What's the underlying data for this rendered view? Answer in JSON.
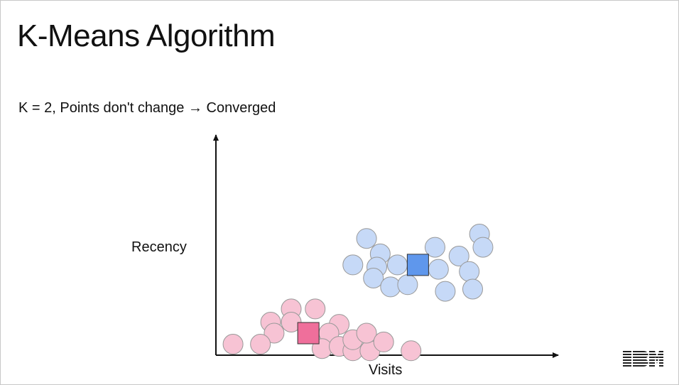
{
  "slide": {
    "title": "K-Means Algorithm",
    "subtitle": "K = 2, Points don't change → Converged"
  },
  "axes": {
    "x_label": "Visits",
    "y_label": "Recency"
  },
  "logo": {
    "text": "IBM"
  },
  "colors": {
    "cluster_pink_point": "#f7c3d4",
    "cluster_pink_centroid": "#ef6f9b",
    "cluster_blue_point": "#c6d9f7",
    "cluster_blue_centroid": "#5f97ec",
    "stroke": "#999999",
    "axis": "#111111"
  },
  "chart_data": {
    "type": "scatter",
    "x_label": "Visits",
    "y_label": "Recency",
    "grid": false,
    "series": [
      {
        "cluster": "pink",
        "points": [
          [
            0.22,
            0.21
          ],
          [
            0.29,
            0.21
          ],
          [
            0.16,
            0.15
          ],
          [
            0.22,
            0.15
          ],
          [
            0.36,
            0.14
          ],
          [
            0.17,
            0.1
          ],
          [
            0.33,
            0.1
          ],
          [
            0.05,
            0.05
          ],
          [
            0.13,
            0.05
          ],
          [
            0.31,
            0.03
          ],
          [
            0.36,
            0.04
          ],
          [
            0.4,
            0.02
          ],
          [
            0.45,
            0.02
          ],
          [
            0.4,
            0.07
          ],
          [
            0.44,
            0.1
          ],
          [
            0.49,
            0.06
          ],
          [
            0.57,
            0.02
          ]
        ],
        "centroid": [
          0.27,
          0.1
        ]
      },
      {
        "cluster": "blue",
        "points": [
          [
            0.44,
            0.53
          ],
          [
            0.77,
            0.55
          ],
          [
            0.48,
            0.46
          ],
          [
            0.64,
            0.49
          ],
          [
            0.71,
            0.45
          ],
          [
            0.78,
            0.49
          ],
          [
            0.4,
            0.41
          ],
          [
            0.47,
            0.4
          ],
          [
            0.53,
            0.41
          ],
          [
            0.65,
            0.39
          ],
          [
            0.74,
            0.38
          ],
          [
            0.46,
            0.35
          ],
          [
            0.51,
            0.31
          ],
          [
            0.56,
            0.32
          ],
          [
            0.67,
            0.29
          ],
          [
            0.75,
            0.3
          ]
        ],
        "centroid": [
          0.59,
          0.41
        ]
      }
    ]
  }
}
